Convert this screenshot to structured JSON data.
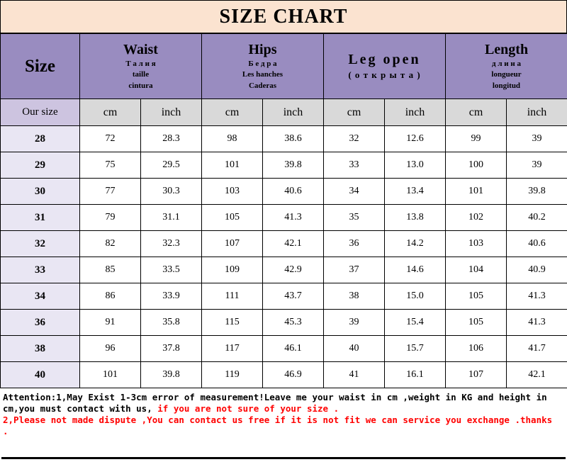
{
  "page": {
    "title": "SIZE CHART"
  },
  "table": {
    "size_header": "Size",
    "our_size_label": "Our size",
    "units": [
      "cm",
      "inch"
    ],
    "column_groups": [
      {
        "name": "Waist",
        "subtitles": [
          "Т а л и я",
          "taille",
          "cintura"
        ]
      },
      {
        "name": "Hips",
        "subtitles": [
          "Б е д р а",
          "Les hanches",
          "Caderas"
        ]
      },
      {
        "name": "Leg open",
        "subtitles": [
          "( о т к р ы т а )"
        ]
      },
      {
        "name": "Length",
        "subtitles": [
          "д л и н а",
          "longueur",
          "longitud"
        ]
      }
    ],
    "rows": [
      {
        "size": "28",
        "values": [
          "72",
          "28.3",
          "98",
          "38.6",
          "32",
          "12.6",
          "99",
          "39"
        ]
      },
      {
        "size": "29",
        "values": [
          "75",
          "29.5",
          "101",
          "39.8",
          "33",
          "13.0",
          "100",
          "39"
        ]
      },
      {
        "size": "30",
        "values": [
          "77",
          "30.3",
          "103",
          "40.6",
          "34",
          "13.4",
          "101",
          "39.8"
        ]
      },
      {
        "size": "31",
        "values": [
          "79",
          "31.1",
          "105",
          "41.3",
          "35",
          "13.8",
          "102",
          "40.2"
        ]
      },
      {
        "size": "32",
        "values": [
          "82",
          "32.3",
          "107",
          "42.1",
          "36",
          "14.2",
          "103",
          "40.6"
        ]
      },
      {
        "size": "33",
        "values": [
          "85",
          "33.5",
          "109",
          "42.9",
          "37",
          "14.6",
          "104",
          "40.9"
        ]
      },
      {
        "size": "34",
        "values": [
          "86",
          "33.9",
          "111",
          "43.7",
          "38",
          "15.0",
          "105",
          "41.3"
        ]
      },
      {
        "size": "36",
        "values": [
          "91",
          "35.8",
          "115",
          "45.3",
          "39",
          "15.4",
          "105",
          "41.3"
        ]
      },
      {
        "size": "38",
        "values": [
          "96",
          "37.8",
          "117",
          "46.1",
          "40",
          "15.7",
          "106",
          "41.7"
        ]
      },
      {
        "size": "40",
        "values": [
          "101",
          "39.8",
          "119",
          "46.9",
          "41",
          "16.1",
          "107",
          "42.1"
        ]
      }
    ]
  },
  "footer": {
    "attention_black": "Attention:1,May Exist 1-3cm error of measurement!Leave me your waist in cm ,weight in KG and height in cm,you must contact with us, ",
    "attention_red": "if you are not sure of your size .",
    "note_red": "2,Please not made dispute ,You can contact us free if it is not fit  we can service you exchange .thanks ."
  },
  "colors": {
    "title_peach": "#fbe3d0",
    "header_purple": "#998cc0",
    "our_size_lavender": "#cdc4e0",
    "size_cell_lavender": "#e9e6f3",
    "unit_gray": "#d9d9d9",
    "alert_red": "#ff0000"
  },
  "chart_data": {
    "type": "table",
    "title": "SIZE CHART",
    "columns": [
      "Our size",
      "Waist cm",
      "Waist inch",
      "Hips cm",
      "Hips inch",
      "Leg open cm",
      "Leg open inch",
      "Length cm",
      "Length inch"
    ],
    "rows": [
      [
        28,
        72,
        28.3,
        98,
        38.6,
        32,
        12.6,
        99,
        39
      ],
      [
        29,
        75,
        29.5,
        101,
        39.8,
        33,
        13.0,
        100,
        39
      ],
      [
        30,
        77,
        30.3,
        103,
        40.6,
        34,
        13.4,
        101,
        39.8
      ],
      [
        31,
        79,
        31.1,
        105,
        41.3,
        35,
        13.8,
        102,
        40.2
      ],
      [
        32,
        82,
        32.3,
        107,
        42.1,
        36,
        14.2,
        103,
        40.6
      ],
      [
        33,
        85,
        33.5,
        109,
        42.9,
        37,
        14.6,
        104,
        40.9
      ],
      [
        34,
        86,
        33.9,
        111,
        43.7,
        38,
        15.0,
        105,
        41.3
      ],
      [
        36,
        91,
        35.8,
        115,
        45.3,
        39,
        15.4,
        105,
        41.3
      ],
      [
        38,
        96,
        37.8,
        117,
        46.1,
        40,
        15.7,
        106,
        41.7
      ],
      [
        40,
        101,
        39.8,
        119,
        46.9,
        41,
        16.1,
        107,
        42.1
      ]
    ],
    "notes": "Attention: may exist 1-3cm error of measurement; contact seller with waist/weight/height if unsure of size."
  }
}
